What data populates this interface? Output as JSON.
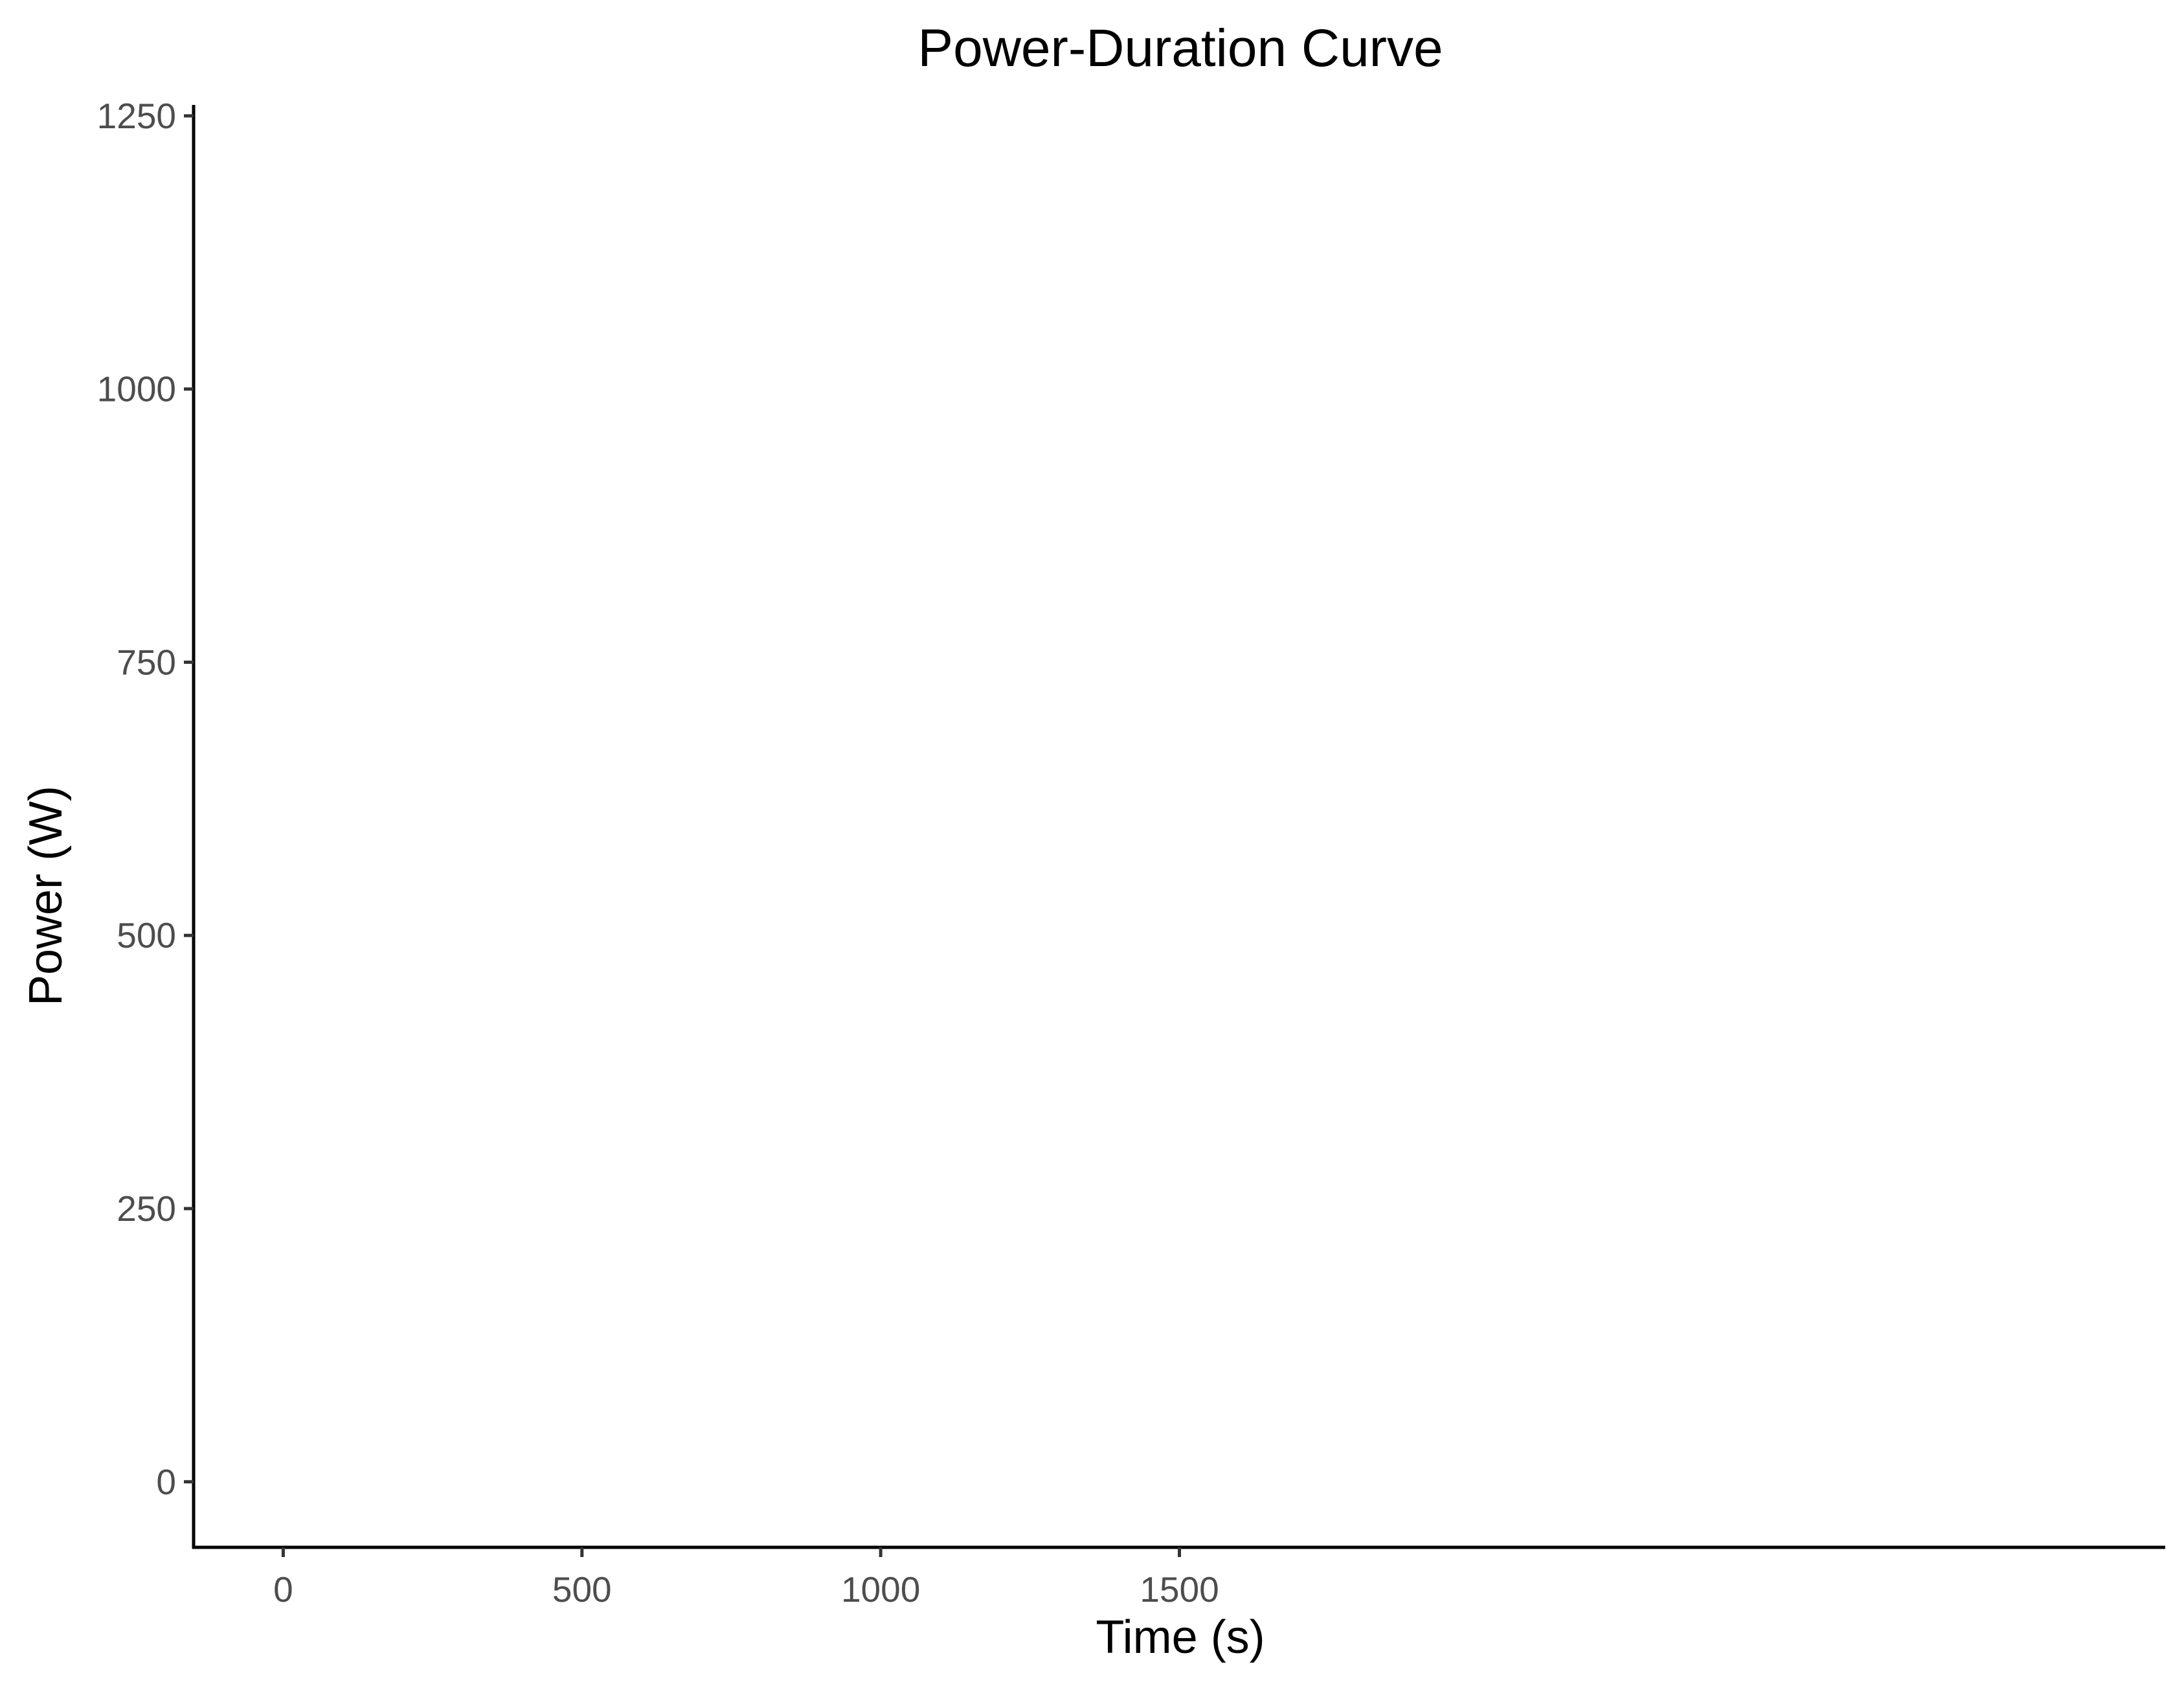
{
  "chart_data": {
    "type": "line",
    "title": "Power-Duration Curve",
    "xlabel": "Time (s)",
    "ylabel": "Power (W)",
    "xlim": [
      -150,
      3150
    ],
    "ylim": [
      -60,
      1260
    ],
    "x_ticks": [
      0,
      500,
      1000,
      1500
    ],
    "y_ticks": [
      0,
      250,
      500,
      750,
      1000,
      1250
    ],
    "x_tick_labels": [
      "0",
      "500",
      "1000",
      "1500"
    ],
    "y_tick_labels": [
      "0",
      "250",
      "500",
      "750",
      "1000",
      "1250"
    ],
    "grid": false,
    "series": []
  }
}
